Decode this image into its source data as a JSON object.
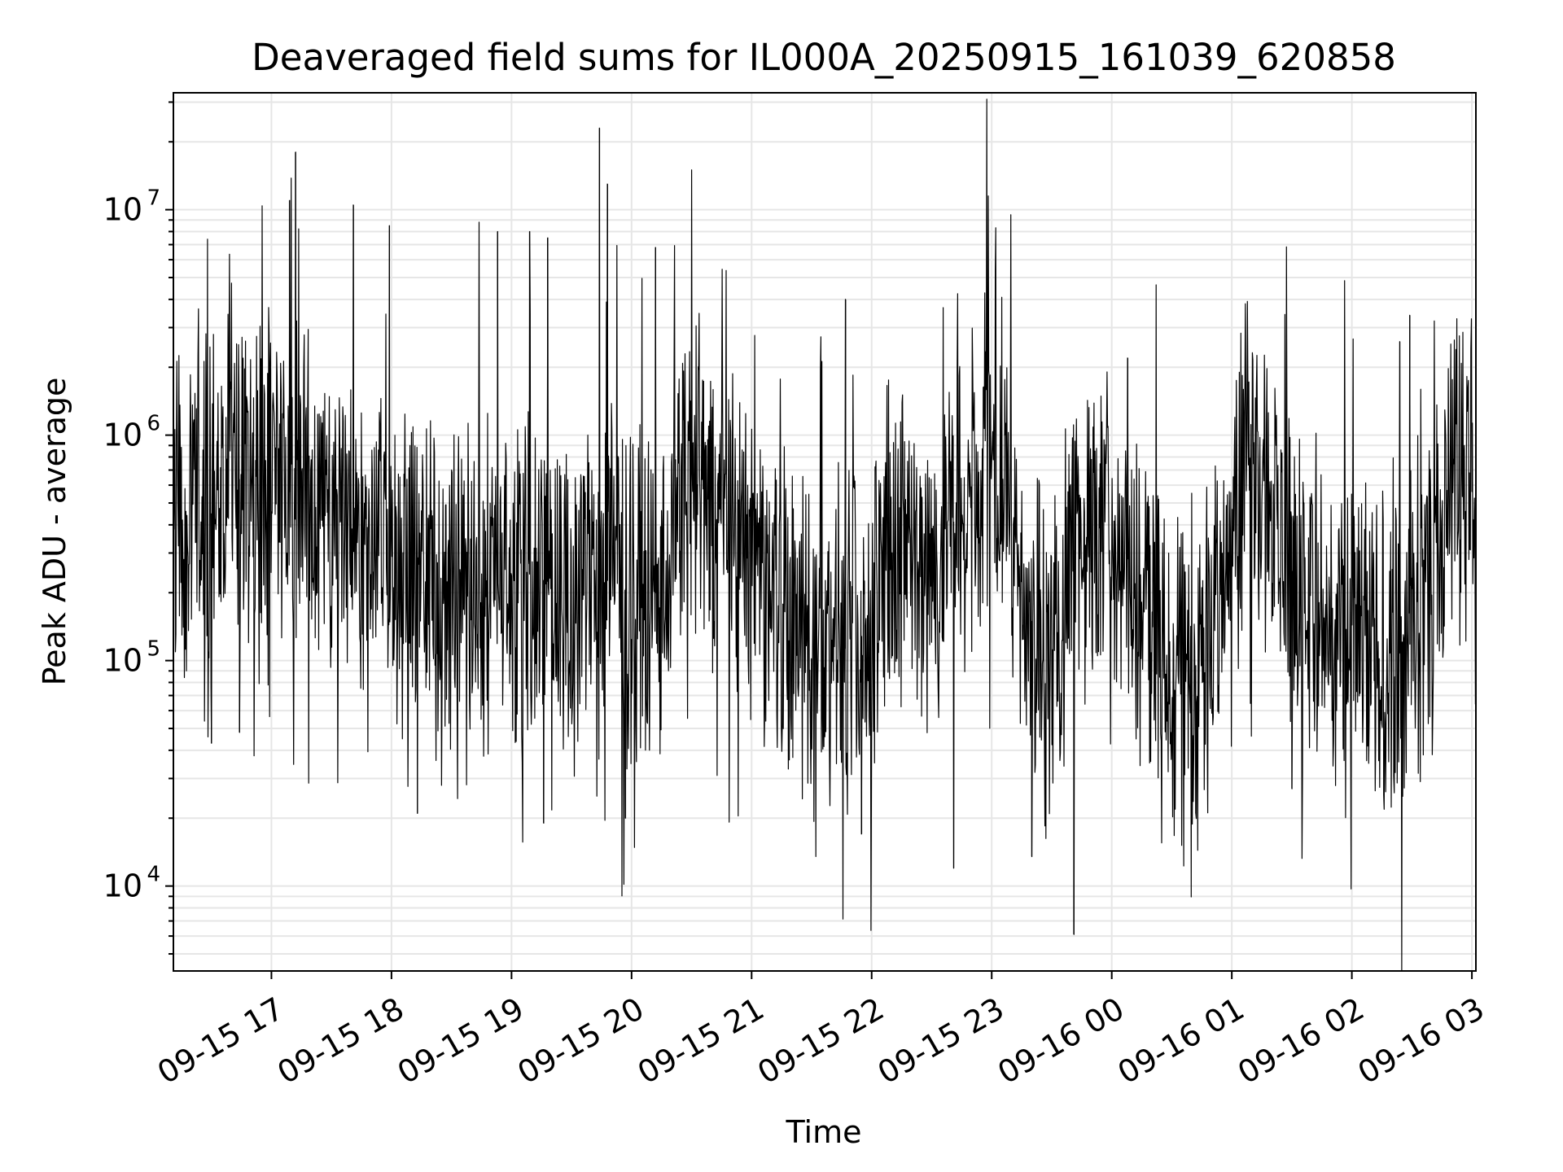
{
  "chart_data": {
    "type": "line",
    "title": "Deaveraged field sums for IL000A_20250915_161039_620858",
    "xlabel": "Time",
    "ylabel": "Peak ADU - average",
    "yscale": "log",
    "ylim": [
      4200,
      33000000
    ],
    "xlim": [
      "2025-09-15 16:11",
      "2025-09-16 03:02"
    ],
    "grid": true,
    "line_color": "#000000",
    "grid_color": "#e6e6e6",
    "x_ticks": [
      "09-15 17",
      "09-15 18",
      "09-15 19",
      "09-15 20",
      "09-15 21",
      "09-15 22",
      "09-15 23",
      "09-16 00",
      "09-16 01",
      "09-16 02",
      "09-16 03"
    ],
    "y_ticks": [
      {
        "base": "10",
        "exp": "4",
        "value": 10000
      },
      {
        "base": "10",
        "exp": "5",
        "value": 100000
      },
      {
        "base": "10",
        "exp": "6",
        "value": 1000000
      },
      {
        "base": "10",
        "exp": "7",
        "value": 10000000
      }
    ],
    "series": [
      {
        "x": [
          "2025-09-15 16:11",
          "2025-09-15 16:20",
          "2025-09-15 16:30",
          "2025-09-15 16:40",
          "2025-09-15 16:50",
          "2025-09-15 17:00",
          "2025-09-15 17:10",
          "2025-09-15 17:20",
          "2025-09-15 17:30",
          "2025-09-15 17:40",
          "2025-09-15 17:50",
          "2025-09-15 18:00",
          "2025-09-15 18:10",
          "2025-09-15 18:20",
          "2025-09-15 18:30",
          "2025-09-15 18:40",
          "2025-09-15 18:50",
          "2025-09-15 19:00",
          "2025-09-15 19:10",
          "2025-09-15 19:20",
          "2025-09-15 19:30",
          "2025-09-15 19:40",
          "2025-09-15 19:50",
          "2025-09-15 20:00",
          "2025-09-15 20:10",
          "2025-09-15 20:20",
          "2025-09-15 20:30",
          "2025-09-15 20:40",
          "2025-09-15 20:50",
          "2025-09-15 21:00",
          "2025-09-15 21:10",
          "2025-09-15 21:20",
          "2025-09-15 21:30",
          "2025-09-15 21:40",
          "2025-09-15 21:50",
          "2025-09-15 22:00",
          "2025-09-15 22:10",
          "2025-09-15 22:20",
          "2025-09-15 22:30",
          "2025-09-15 22:40",
          "2025-09-15 22:50",
          "2025-09-15 23:00",
          "2025-09-15 23:10",
          "2025-09-15 23:20",
          "2025-09-15 23:30",
          "2025-09-15 23:40",
          "2025-09-15 23:50",
          "2025-09-16 00:00",
          "2025-09-16 00:10",
          "2025-09-16 00:20",
          "2025-09-16 00:30",
          "2025-09-16 00:40",
          "2025-09-16 00:50",
          "2025-09-16 01:00",
          "2025-09-16 01:10",
          "2025-09-16 01:20",
          "2025-09-16 01:30",
          "2025-09-16 01:40",
          "2025-09-16 01:50",
          "2025-09-16 02:00",
          "2025-09-16 02:10",
          "2025-09-16 02:20",
          "2025-09-16 02:30",
          "2025-09-16 02:40",
          "2025-09-16 02:50",
          "2025-09-16 03:00"
        ],
        "y": [
          400000,
          500000,
          450000,
          600000,
          700000,
          650000,
          550000,
          500000,
          450000,
          400000,
          350000,
          300000,
          250000,
          220000,
          200000,
          210000,
          230000,
          250000,
          240000,
          220000,
          200000,
          210000,
          230000,
          200000,
          180000,
          300000,
          700000,
          500000,
          300000,
          250000,
          200000,
          150000,
          130000,
          120000,
          110000,
          150000,
          300000,
          350000,
          250000,
          400000,
          550000,
          700000,
          500000,
          150000,
          90000,
          300000,
          400000,
          450000,
          250000,
          150000,
          100000,
          90000,
          120000,
          600000,
          750000,
          400000,
          250000,
          180000,
          130000,
          120000,
          110000,
          100000,
          120000,
          200000,
          550000,
          700000
        ]
      }
    ],
    "spikes": [
      {
        "x": "2025-09-15 17:12",
        "value": 18000000
      },
      {
        "x": "2025-09-15 17:09",
        "value": 11000000
      },
      {
        "x": "2025-09-15 17:41",
        "value": 10500000
      },
      {
        "x": "2025-09-15 17:59",
        "value": 8500000
      },
      {
        "x": "2025-09-15 18:53",
        "value": 8000000
      },
      {
        "x": "2025-09-15 19:09",
        "value": 8000000
      },
      {
        "x": "2025-09-15 19:18",
        "value": 7500000
      },
      {
        "x": "2025-09-15 19:44",
        "value": 23000000
      },
      {
        "x": "2025-09-15 19:48",
        "value": 13000000
      },
      {
        "x": "2025-09-15 20:12",
        "value": 6800000
      },
      {
        "x": "2025-09-15 21:47",
        "value": 4000000
      },
      {
        "x": "2025-09-16 02:24",
        "value": 2600000
      },
      {
        "x": "2025-09-16 02:29",
        "value": 3400000
      },
      {
        "x": "2025-09-16 00:08",
        "value": 2200000
      }
    ],
    "dips": [
      {
        "x": "2025-09-15 16:30",
        "value": 43000
      },
      {
        "x": "2025-09-15 16:44",
        "value": 48000
      },
      {
        "x": "2025-09-15 18:13",
        "value": 21000
      },
      {
        "x": "2025-09-15 19:16",
        "value": 19000
      },
      {
        "x": "2025-09-15 19:57",
        "value": 20000
      },
      {
        "x": "2025-09-15 21:55",
        "value": 17000
      },
      {
        "x": "2025-09-15 22:41",
        "value": 12000
      },
      {
        "x": "2025-09-15 23:20",
        "value": 13500
      },
      {
        "x": "2025-09-15 23:41",
        "value": 6100
      },
      {
        "x": "2025-09-16 00:42",
        "value": 21000
      },
      {
        "x": "2025-09-16 01:30",
        "value": 27000
      }
    ]
  }
}
